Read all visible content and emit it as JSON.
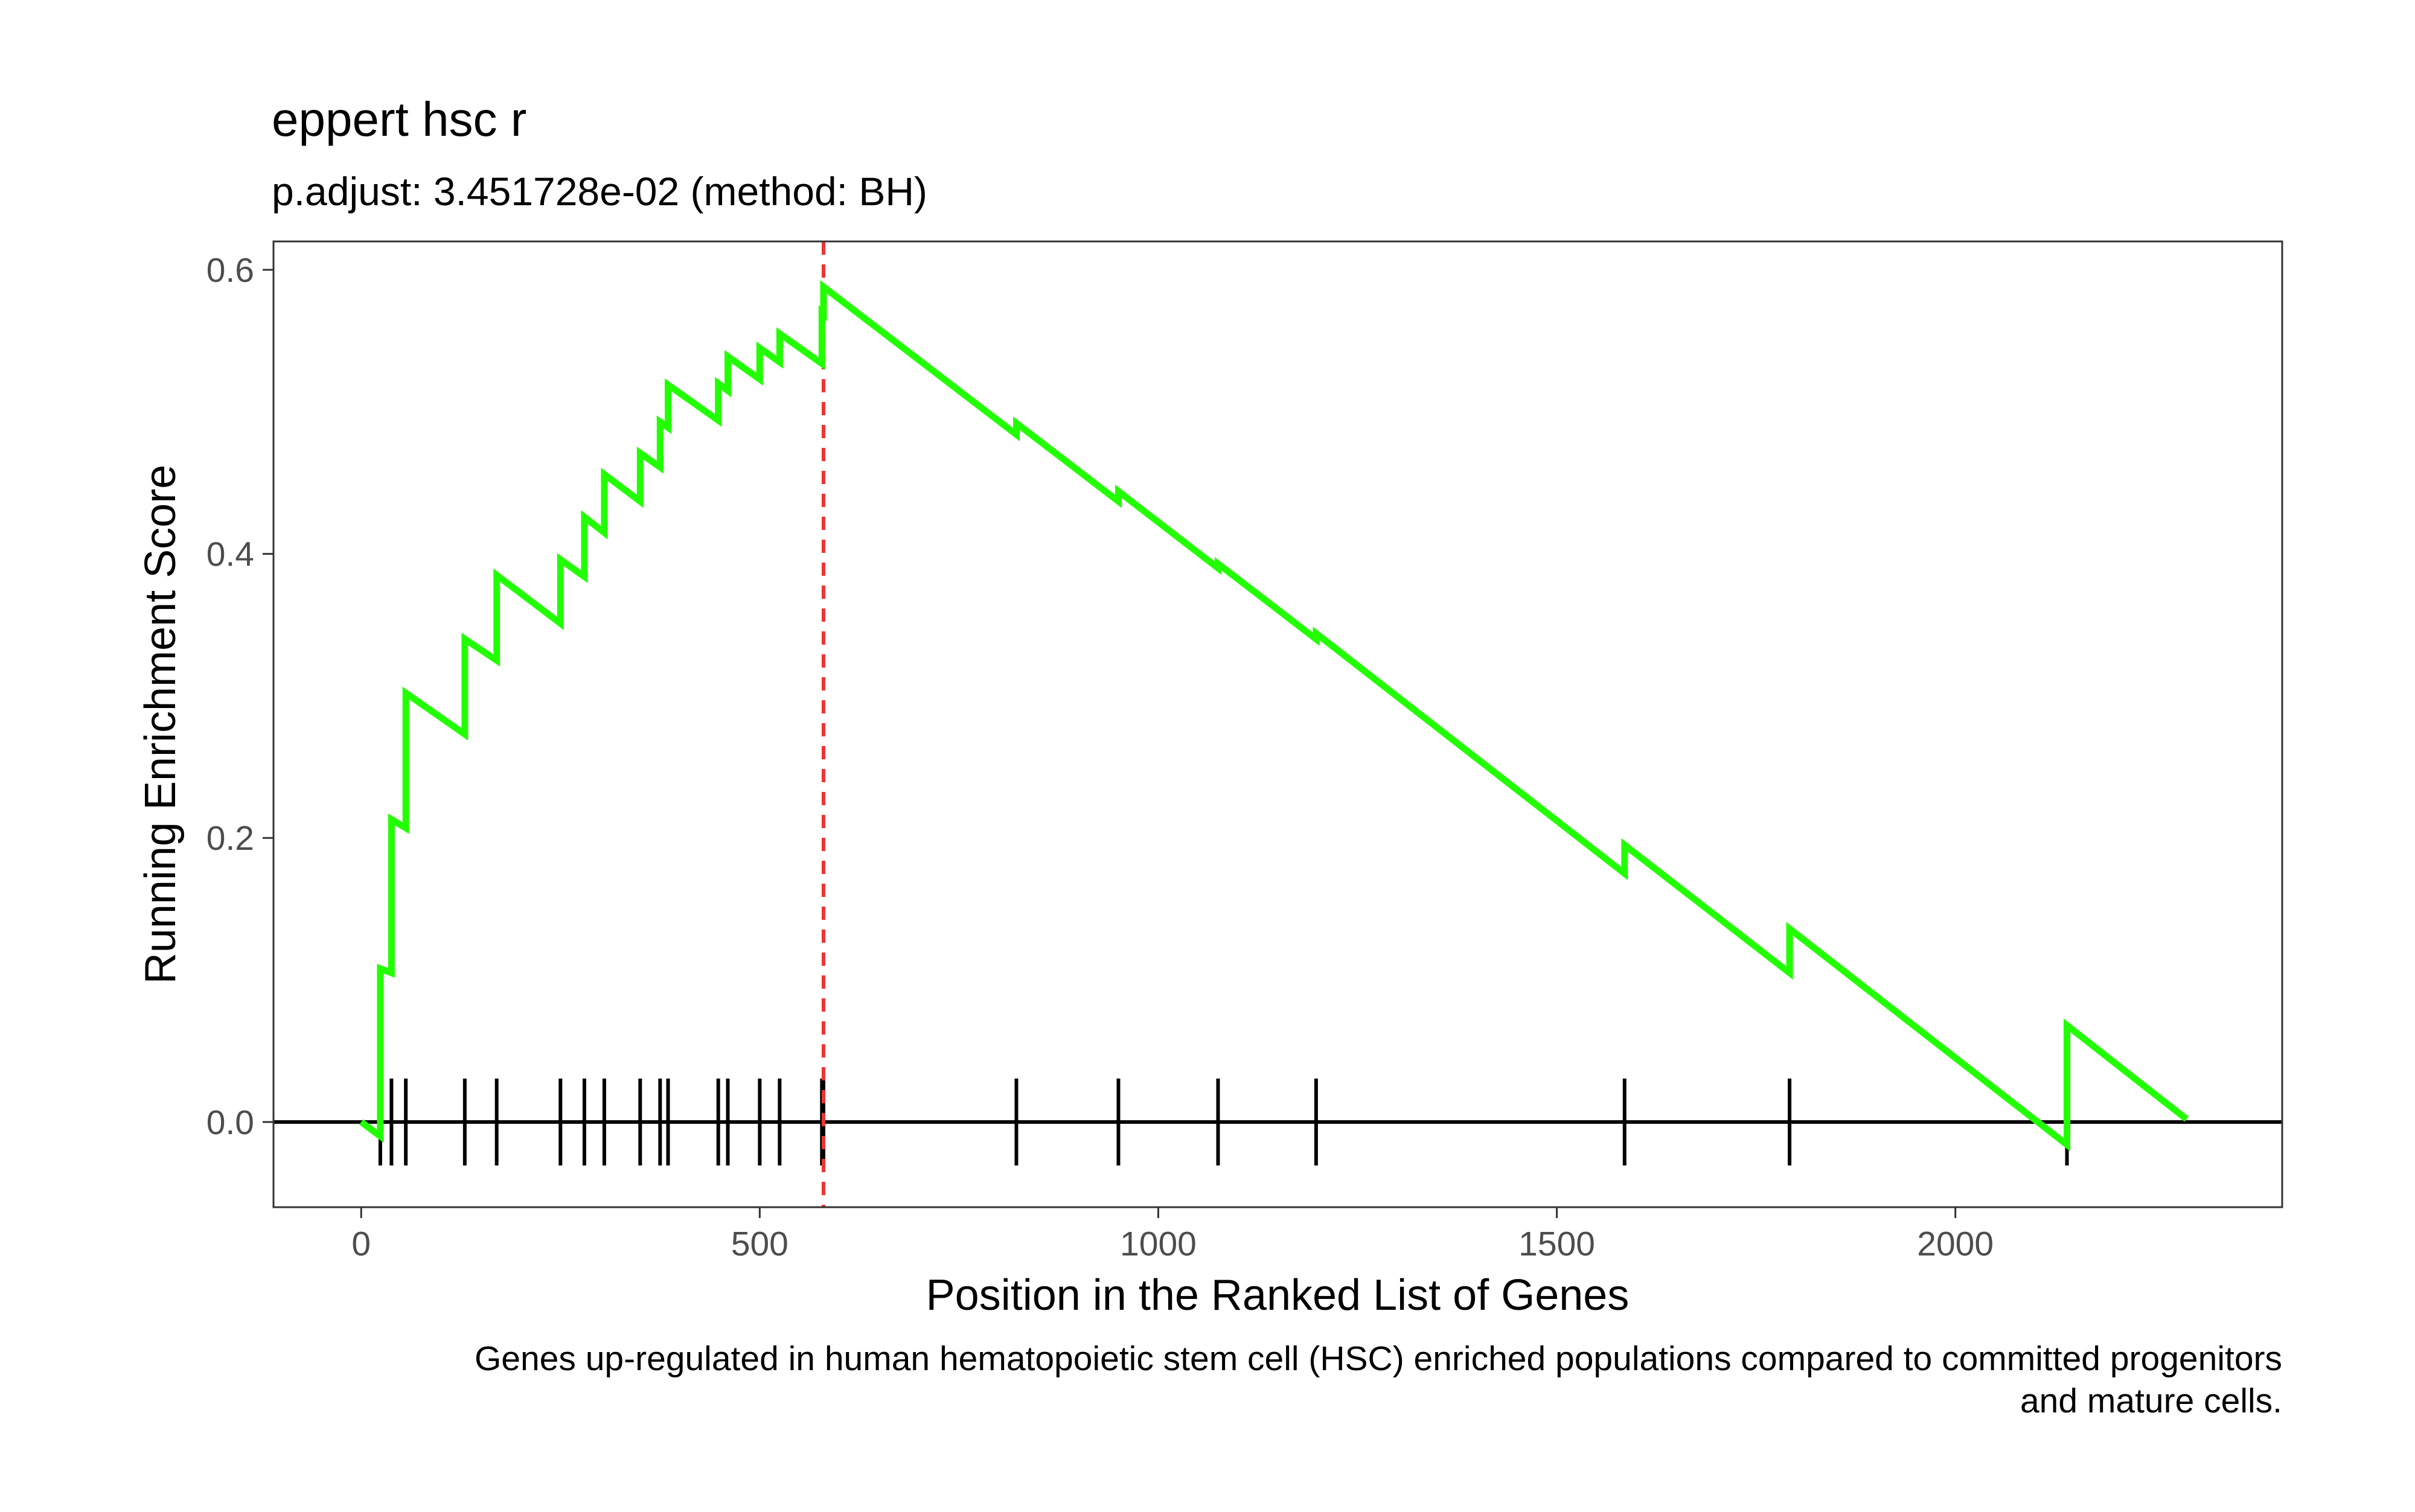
{
  "chart_data": {
    "type": "line",
    "title": "eppert hsc r",
    "subtitle": "p.adjust: 3.451728e-02 (method: BH)",
    "xlabel": "Position in the Ranked List of Genes",
    "ylabel": "Running Enrichment Score",
    "caption": [
      "Genes up-regulated in human hematopoietic stem cell (HSC) enriched populations compared to committed progenitors",
      "and mature cells."
    ],
    "xlim": [
      -110,
      2410
    ],
    "ylim": [
      -0.06,
      0.62
    ],
    "x_ticks": [
      0,
      500,
      1000,
      1500,
      2000
    ],
    "y_ticks": [
      0.0,
      0.2,
      0.4,
      0.6
    ],
    "y_tick_labels": [
      "0.0",
      "0.2",
      "0.4",
      "0.6"
    ],
    "grid": false,
    "colors": {
      "line": "#22ff00",
      "peak_line": "#ee3333",
      "ticks": "#000000",
      "baseline": "#000000"
    },
    "peak_position": 580,
    "gene_hits": [
      24,
      38,
      56,
      130,
      170,
      250,
      280,
      305,
      350,
      375,
      385,
      448,
      460,
      500,
      525,
      578,
      580,
      822,
      950,
      1075,
      1198,
      1585,
      1792,
      2140
    ],
    "series": [
      {
        "x": [
          0,
          24,
          24,
          38,
          38,
          56,
          56,
          130,
          130,
          170,
          170,
          250,
          250,
          280,
          280,
          305,
          305,
          350,
          350,
          375,
          375,
          385,
          385,
          448,
          448,
          460,
          460,
          500,
          500,
          525,
          525,
          578,
          578,
          580,
          580,
          822,
          822,
          950,
          950,
          1075,
          1075,
          1198,
          1198,
          1585,
          1585,
          1792,
          1792,
          2140,
          2140,
          2290
        ],
        "y": [
          0.0,
          -0.01,
          0.108,
          0.105,
          0.213,
          0.207,
          0.302,
          0.273,
          0.34,
          0.325,
          0.385,
          0.351,
          0.396,
          0.384,
          0.426,
          0.415,
          0.456,
          0.437,
          0.471,
          0.461,
          0.493,
          0.489,
          0.519,
          0.494,
          0.52,
          0.515,
          0.539,
          0.523,
          0.545,
          0.535,
          0.555,
          0.534,
          0.57,
          0.569,
          0.588,
          0.484,
          0.492,
          0.437,
          0.444,
          0.39,
          0.393,
          0.34,
          0.344,
          0.175,
          0.195,
          0.105,
          0.136,
          -0.016,
          0.068,
          0.002
        ]
      }
    ]
  }
}
